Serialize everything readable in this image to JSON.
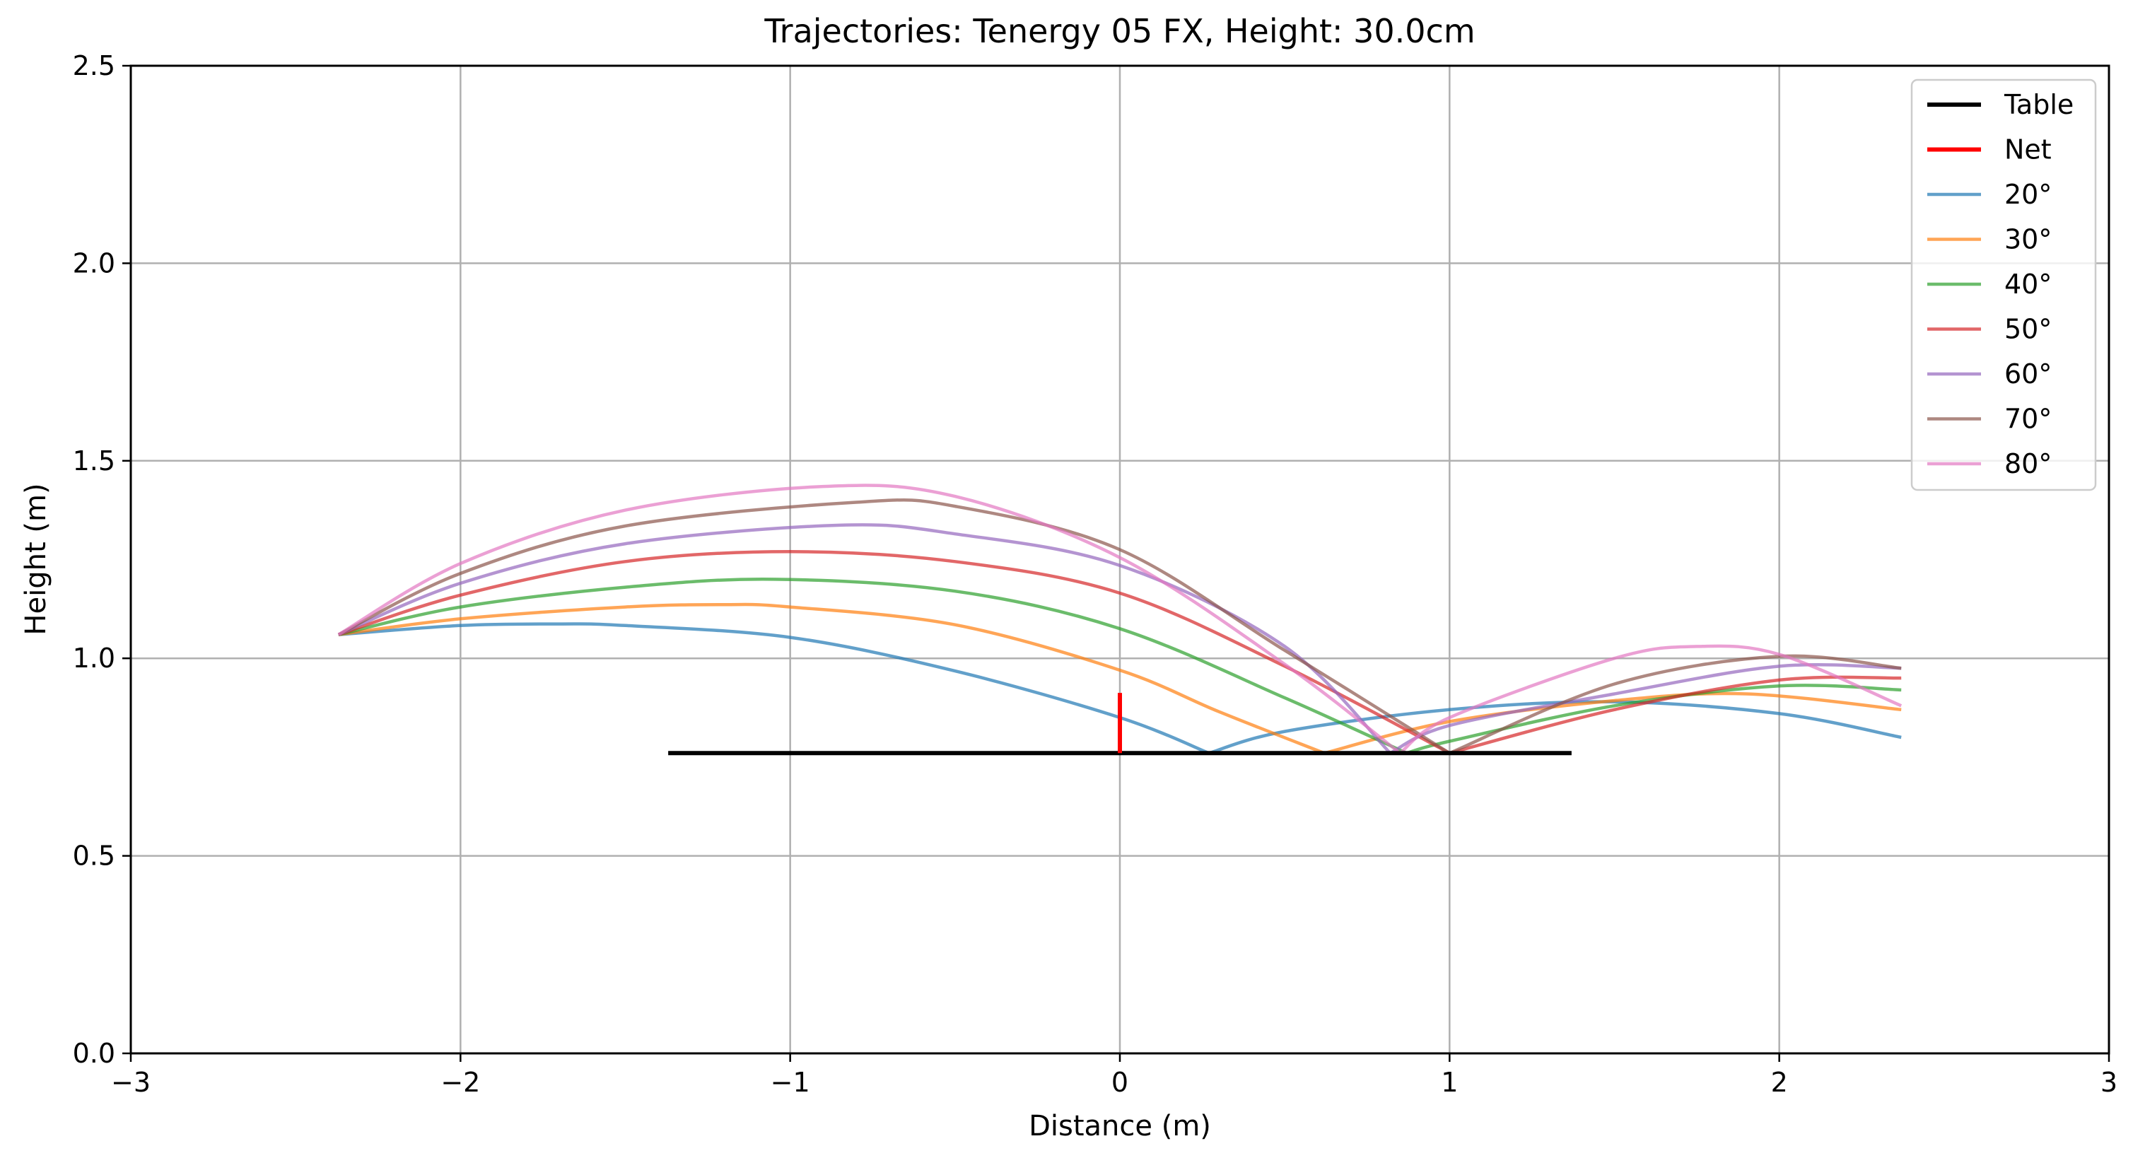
{
  "chart_data": {
    "type": "line",
    "title": "Trajectories: Tenergy 05 FX, Height: 30.0cm",
    "xlabel": "Distance (m)",
    "ylabel": "Height (m)",
    "xlim": [
      -3,
      3
    ],
    "ylim": [
      0,
      2.5
    ],
    "xticks": [
      -3,
      -2,
      -1,
      0,
      1,
      2,
      3
    ],
    "xtick_labels": [
      "−3",
      "−2",
      "−1",
      "0",
      "1",
      "2",
      "3"
    ],
    "yticks": [
      0,
      0.5,
      1,
      1.5,
      2,
      2.5
    ],
    "ytick_labels": [
      "0.0",
      "0.5",
      "1.0",
      "1.5",
      "2.0",
      "2.5"
    ],
    "grid": true,
    "legend_position": "top-right",
    "table": {
      "name": "Table",
      "color": "#000000",
      "x": [
        -1.37,
        1.37
      ],
      "y": [
        0.76,
        0.76
      ]
    },
    "net": {
      "name": "Net",
      "color": "#ff0000",
      "x": [
        0,
        0
      ],
      "y": [
        0.76,
        0.9125
      ]
    },
    "series": [
      {
        "name": "20°",
        "color": "#1f77b4",
        "x": [
          -2.37,
          -2.0,
          -1.7,
          -1.5,
          -1.0,
          -0.5,
          0.0,
          0.27,
          0.5,
          1.0,
          1.5,
          2.0,
          2.37
        ],
        "y": [
          1.06,
          1.083,
          1.087,
          1.083,
          1.053,
          0.968,
          0.85,
          0.76,
          0.815,
          0.87,
          0.89,
          0.86,
          0.8
        ]
      },
      {
        "name": "30°",
        "color": "#ff7f0e",
        "x": [
          -2.37,
          -2.0,
          -1.5,
          -1.2,
          -1.0,
          -0.5,
          0.0,
          0.3,
          0.62,
          1.0,
          1.5,
          1.9,
          2.37
        ],
        "y": [
          1.06,
          1.1,
          1.13,
          1.136,
          1.13,
          1.085,
          0.97,
          0.865,
          0.76,
          0.84,
          0.893,
          0.91,
          0.87
        ]
      },
      {
        "name": "40°",
        "color": "#2ca02c",
        "x": [
          -2.37,
          -2.0,
          -1.5,
          -1.05,
          -0.5,
          0.0,
          0.5,
          0.87,
          1.0,
          1.5,
          2.0,
          2.37
        ],
        "y": [
          1.06,
          1.13,
          1.18,
          1.2,
          1.17,
          1.075,
          0.9,
          0.76,
          0.79,
          0.88,
          0.93,
          0.92
        ]
      },
      {
        "name": "50°",
        "color": "#d62728",
        "x": [
          -2.37,
          -2.0,
          -1.5,
          -1.0,
          -0.5,
          0.0,
          0.5,
          1.0,
          1.5,
          2.0,
          2.37
        ],
        "y": [
          1.06,
          1.16,
          1.245,
          1.27,
          1.245,
          1.165,
          0.98,
          0.76,
          0.87,
          0.945,
          0.95
        ]
      },
      {
        "name": "60°",
        "color": "#9467bd",
        "x": [
          -2.37,
          -2.0,
          -1.5,
          -0.85,
          -0.5,
          0.0,
          0.5,
          0.82,
          1.0,
          1.5,
          2.0,
          2.37
        ],
        "y": [
          1.06,
          1.19,
          1.29,
          1.337,
          1.315,
          1.235,
          1.03,
          0.76,
          0.83,
          0.91,
          0.98,
          0.975
        ]
      },
      {
        "name": "70°",
        "color": "#8c564b",
        "x": [
          -2.37,
          -2.0,
          -1.5,
          -0.8,
          -0.5,
          0.0,
          0.5,
          1.0,
          1.5,
          2.0,
          2.37
        ],
        "y": [
          1.06,
          1.215,
          1.335,
          1.395,
          1.385,
          1.275,
          1.02,
          0.76,
          0.935,
          1.005,
          0.975
        ]
      },
      {
        "name": "80°",
        "color": "#e377c2",
        "x": [
          -2.37,
          -2.0,
          -1.5,
          -0.9,
          -0.5,
          0.0,
          0.5,
          0.85,
          1.0,
          1.5,
          1.75,
          2.0,
          2.37
        ],
        "y": [
          1.06,
          1.24,
          1.375,
          1.435,
          1.41,
          1.255,
          0.985,
          0.76,
          0.85,
          1.0,
          1.03,
          1.01,
          0.88
        ]
      }
    ]
  }
}
